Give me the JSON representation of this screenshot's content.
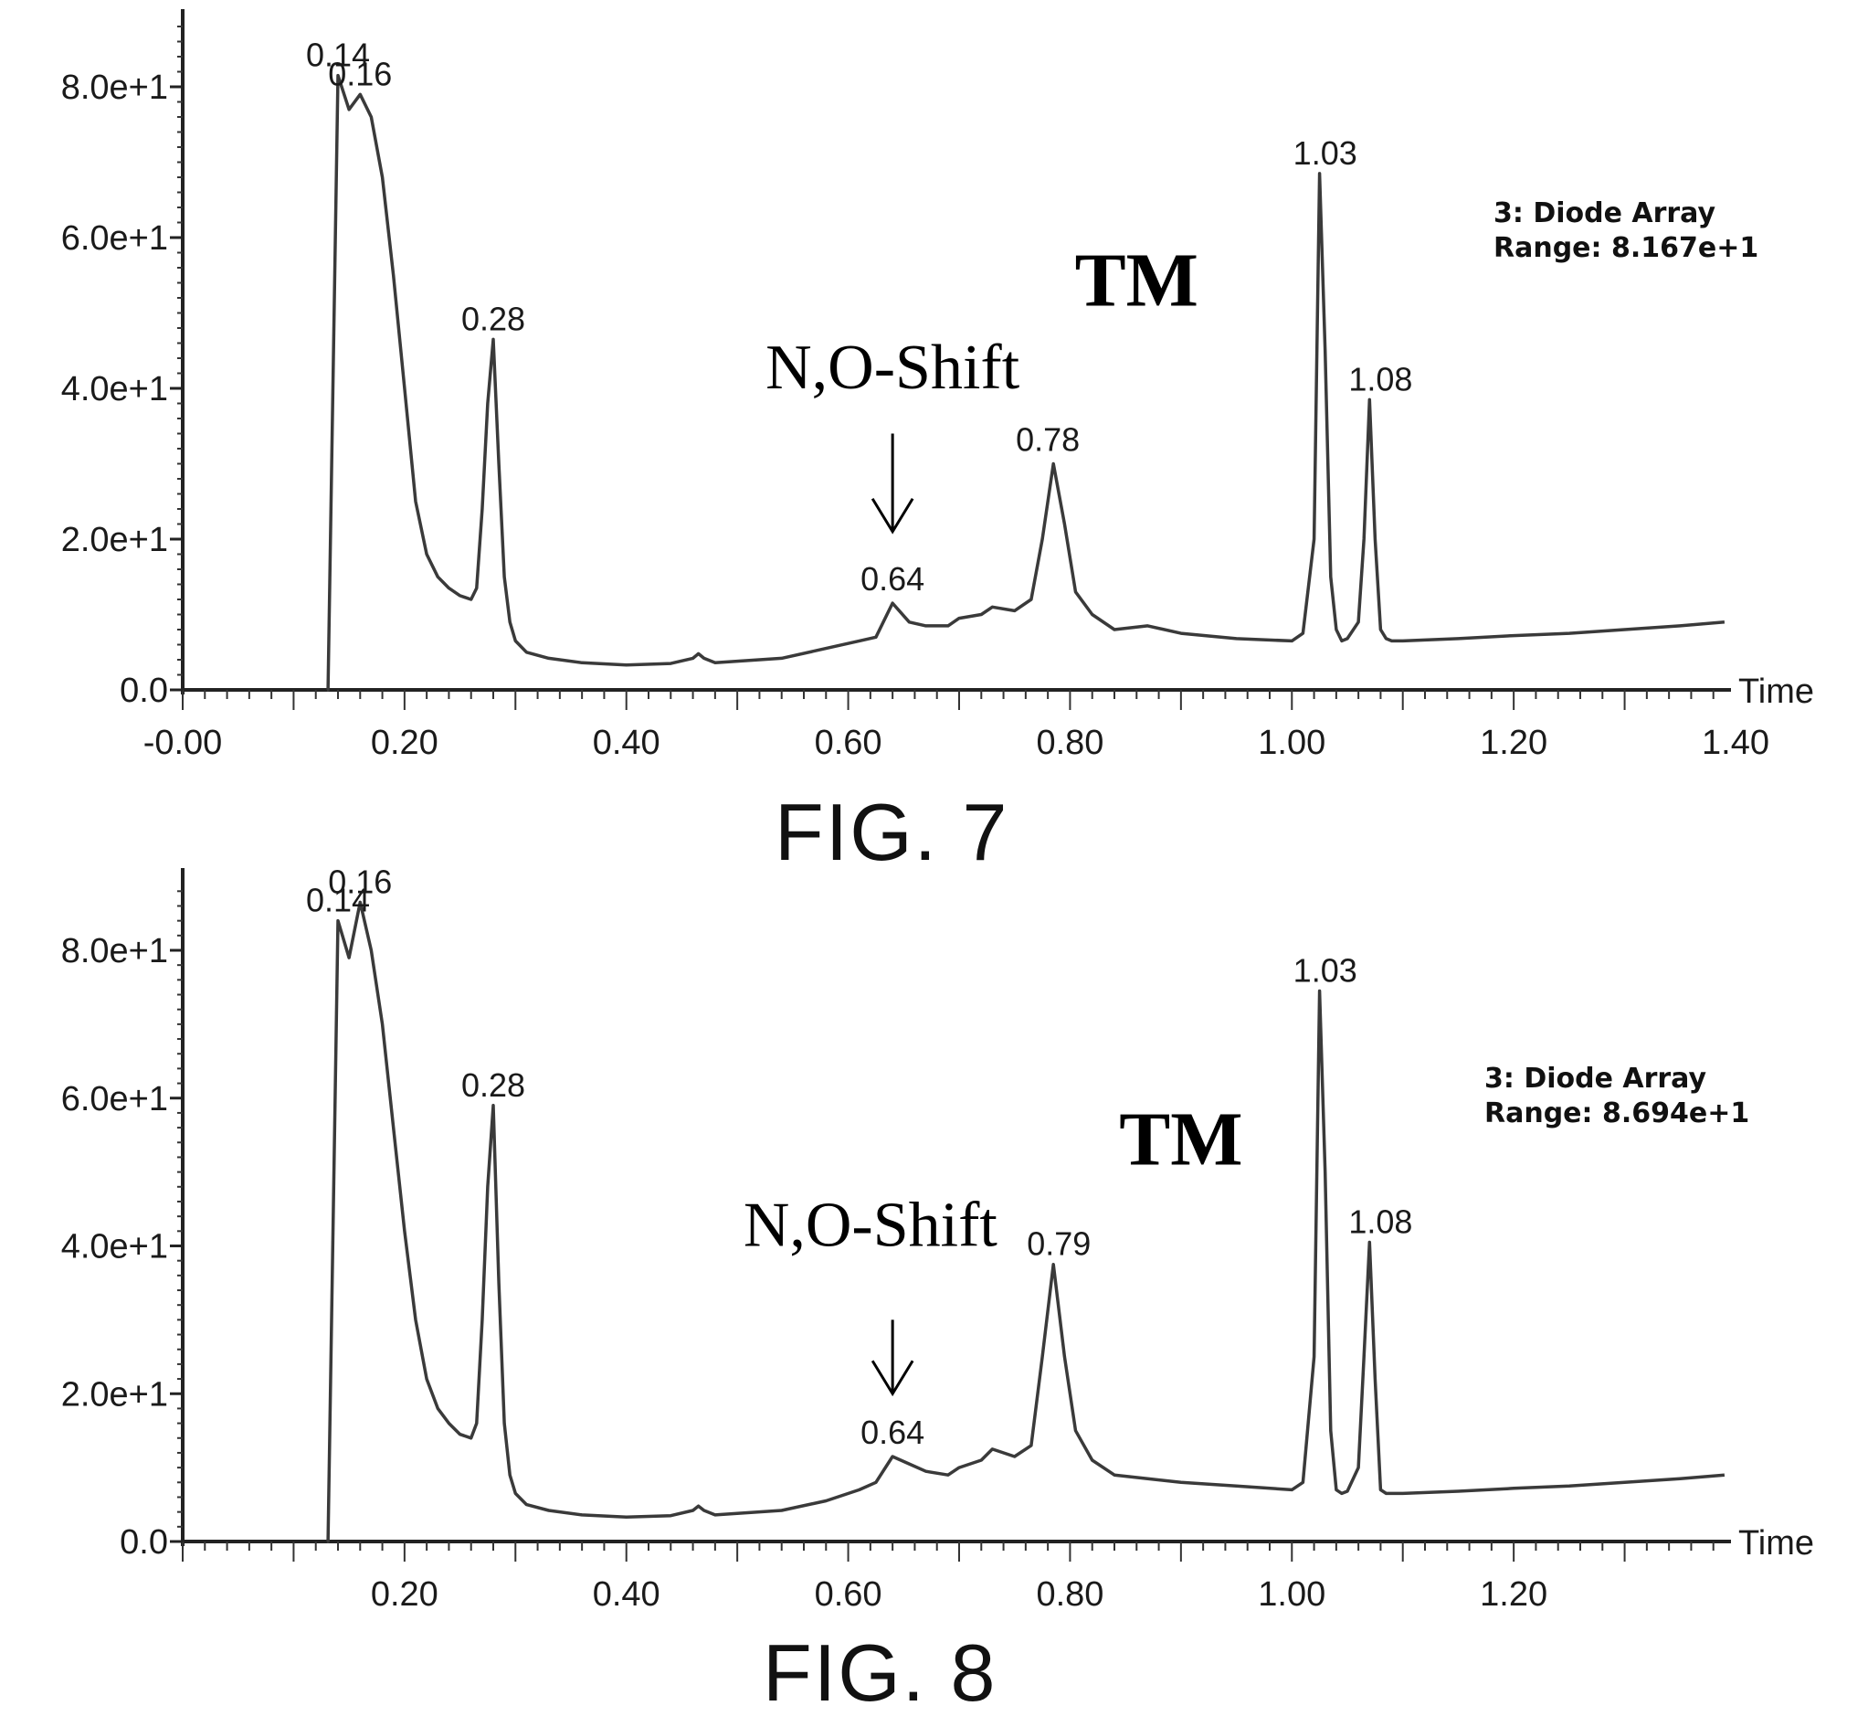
{
  "chart_data": [
    {
      "type": "line",
      "figure_label": "FIG. 7",
      "info_lines": [
        "3: Diode Array",
        "Range: 8.167e+1"
      ],
      "x_axis_label": "Time",
      "xlim": [
        0,
        1.4
      ],
      "ylim": [
        0,
        80
      ],
      "x_ticks": [
        0,
        0.2,
        0.4,
        0.6,
        0.8,
        1.0,
        1.2,
        1.4
      ],
      "x_tick_labels": [
        "-0.00",
        "0.20",
        "0.40",
        "0.60",
        "0.80",
        "1.00",
        "1.20",
        "1.40"
      ],
      "y_ticks": [
        0,
        20,
        40,
        60,
        80
      ],
      "y_tick_labels": [
        "0.0",
        "2.0e+1",
        "4.0e+1",
        "6.0e+1",
        "8.0e+1"
      ],
      "annotations": [
        {
          "text": "N,O-Shift",
          "x": 0.64,
          "y": 40
        },
        {
          "text": "TM",
          "x": 0.86,
          "y": 51
        }
      ],
      "shift_arrow": {
        "x": 0.64,
        "y_from": 34,
        "y_to": 21
      },
      "peak_labels": [
        {
          "text": "0.14",
          "x": 0.14,
          "y": 81.5
        },
        {
          "text": "0.16",
          "x": 0.16,
          "y": 79
        },
        {
          "text": "0.28",
          "x": 0.28,
          "y": 46.5
        },
        {
          "text": "0.64",
          "x": 0.64,
          "y": 12
        },
        {
          "text": "0.78",
          "x": 0.78,
          "y": 30.5
        },
        {
          "text": "1.03",
          "x": 1.03,
          "y": 68.5
        },
        {
          "text": "1.08",
          "x": 1.08,
          "y": 38.5
        }
      ],
      "trace": {
        "x": [
          0.13,
          0.131,
          0.14,
          0.15,
          0.16,
          0.17,
          0.18,
          0.19,
          0.2,
          0.21,
          0.22,
          0.23,
          0.24,
          0.25,
          0.26,
          0.265,
          0.27,
          0.275,
          0.28,
          0.285,
          0.29,
          0.295,
          0.3,
          0.31,
          0.33,
          0.36,
          0.4,
          0.44,
          0.46,
          0.465,
          0.47,
          0.48,
          0.5,
          0.54,
          0.58,
          0.61,
          0.625,
          0.64,
          0.655,
          0.67,
          0.69,
          0.7,
          0.72,
          0.73,
          0.75,
          0.765,
          0.775,
          0.785,
          0.795,
          0.805,
          0.82,
          0.84,
          0.87,
          0.9,
          0.95,
          1.0,
          1.01,
          1.02,
          1.025,
          1.03,
          1.035,
          1.04,
          1.045,
          1.05,
          1.06,
          1.065,
          1.07,
          1.075,
          1.08,
          1.085,
          1.09,
          1.1,
          1.15,
          1.2,
          1.25,
          1.3,
          1.35,
          1.39
        ],
        "y": [
          0,
          0,
          81.5,
          77,
          79,
          76,
          68,
          55,
          40,
          25,
          18,
          15,
          13.5,
          12.5,
          12,
          13.5,
          24,
          38,
          46.5,
          30,
          15,
          9,
          6.5,
          5,
          4.2,
          3.6,
          3.3,
          3.5,
          4.2,
          4.8,
          4.2,
          3.6,
          3.8,
          4.2,
          5.5,
          6.5,
          7,
          11.5,
          9,
          8.5,
          8.5,
          9.5,
          10,
          11,
          10.5,
          12,
          20,
          30,
          22,
          13,
          10,
          8,
          8.5,
          7.5,
          6.8,
          6.5,
          7.5,
          20,
          68.5,
          45,
          15,
          8,
          6.5,
          6.8,
          9,
          20,
          38.5,
          20,
          8,
          6.8,
          6.5,
          6.5,
          6.8,
          7.2,
          7.5,
          8,
          8.5,
          9
        ]
      }
    },
    {
      "type": "line",
      "figure_label": "FIG. 8",
      "info_lines": [
        "3: Diode Array",
        "Range: 8.694e+1"
      ],
      "x_axis_label": "Time",
      "xlim": [
        0,
        1.4
      ],
      "ylim": [
        0,
        80
      ],
      "x_ticks": [
        0.2,
        0.4,
        0.6,
        0.8,
        1.0,
        1.2
      ],
      "x_tick_labels": [
        "0.20",
        "0.40",
        "0.60",
        "0.80",
        "1.00",
        "1.20"
      ],
      "y_ticks": [
        0,
        20,
        40,
        60,
        80
      ],
      "y_tick_labels": [
        "0.0",
        "2.0e+1",
        "4.0e+1",
        "6.0e+1",
        "8.0e+1"
      ],
      "annotations": [
        {
          "text": "N,O-Shift",
          "x": 0.62,
          "y": 40
        },
        {
          "text": "TM",
          "x": 0.9,
          "y": 51
        }
      ],
      "shift_arrow": {
        "x": 0.64,
        "y_from": 30,
        "y_to": 20
      },
      "peak_labels": [
        {
          "text": "0.14",
          "x": 0.14,
          "y": 84
        },
        {
          "text": "0.16",
          "x": 0.16,
          "y": 86.5
        },
        {
          "text": "0.28",
          "x": 0.28,
          "y": 59
        },
        {
          "text": "0.64",
          "x": 0.64,
          "y": 12
        },
        {
          "text": "0.79",
          "x": 0.79,
          "y": 37.5
        },
        {
          "text": "1.03",
          "x": 1.03,
          "y": 74.5
        },
        {
          "text": "1.08",
          "x": 1.08,
          "y": 40.5
        }
      ],
      "trace": {
        "x": [
          0.13,
          0.131,
          0.14,
          0.15,
          0.16,
          0.17,
          0.18,
          0.19,
          0.2,
          0.21,
          0.22,
          0.23,
          0.24,
          0.25,
          0.26,
          0.265,
          0.27,
          0.275,
          0.28,
          0.285,
          0.29,
          0.295,
          0.3,
          0.31,
          0.33,
          0.36,
          0.4,
          0.44,
          0.46,
          0.465,
          0.47,
          0.48,
          0.5,
          0.54,
          0.58,
          0.61,
          0.625,
          0.64,
          0.655,
          0.67,
          0.69,
          0.7,
          0.72,
          0.73,
          0.75,
          0.765,
          0.775,
          0.785,
          0.795,
          0.805,
          0.82,
          0.84,
          0.87,
          0.9,
          0.95,
          1.0,
          1.01,
          1.02,
          1.025,
          1.03,
          1.035,
          1.04,
          1.045,
          1.05,
          1.06,
          1.065,
          1.07,
          1.075,
          1.08,
          1.085,
          1.09,
          1.1,
          1.15,
          1.2,
          1.25,
          1.3,
          1.35,
          1.39
        ],
        "y": [
          0,
          0,
          84,
          79,
          86.5,
          80,
          70,
          56,
          42,
          30,
          22,
          18,
          16,
          14.5,
          14,
          16,
          30,
          48,
          59,
          35,
          16,
          9,
          6.5,
          5,
          4.2,
          3.6,
          3.3,
          3.5,
          4.2,
          4.8,
          4.2,
          3.6,
          3.8,
          4.2,
          5.5,
          7,
          8,
          11.5,
          10.5,
          9.5,
          9,
          10,
          11,
          12.5,
          11.5,
          13,
          25,
          37.5,
          25,
          15,
          11,
          9,
          8.5,
          8,
          7.5,
          7,
          8,
          25,
          74.5,
          50,
          15,
          7,
          6.5,
          6.8,
          10,
          25,
          40.5,
          22,
          7,
          6.5,
          6.5,
          6.5,
          6.8,
          7.2,
          7.5,
          8,
          8.5,
          9
        ]
      }
    }
  ]
}
